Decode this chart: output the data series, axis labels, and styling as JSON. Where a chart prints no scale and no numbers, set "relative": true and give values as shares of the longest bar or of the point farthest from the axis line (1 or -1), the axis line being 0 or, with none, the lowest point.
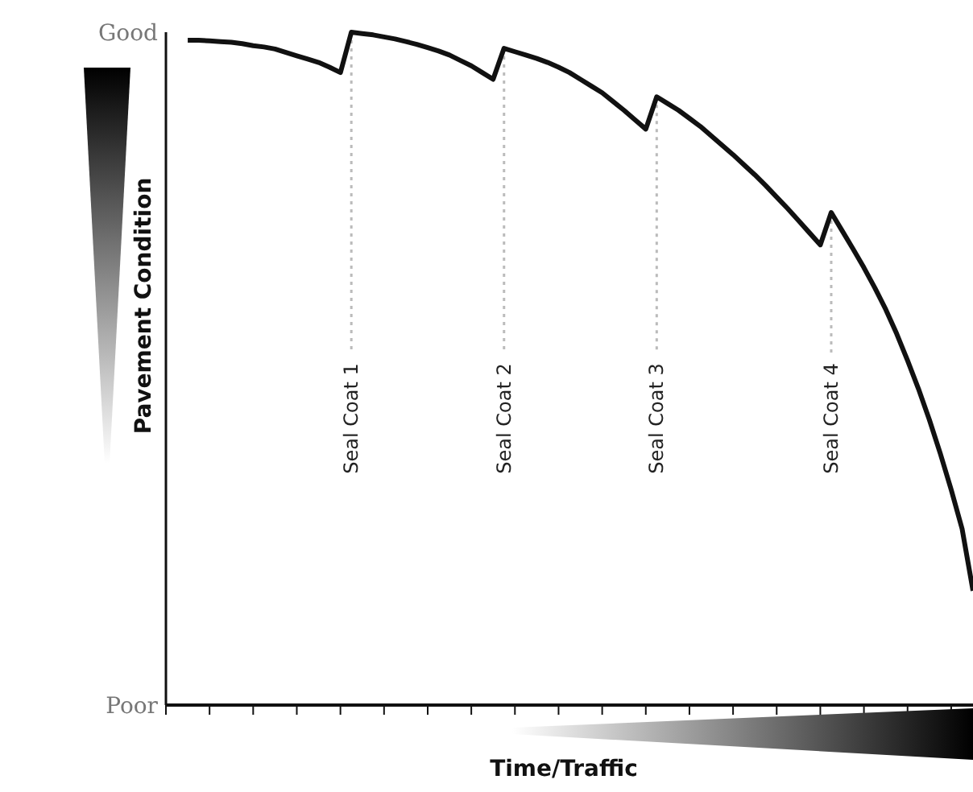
{
  "chart_data": {
    "type": "line",
    "xlabel": "Time/Traffic",
    "ylabel": "Pavement Condition",
    "relative": true,
    "categories": [
      null,
      null,
      null,
      null,
      null,
      null,
      null,
      null,
      null,
      null,
      null,
      null,
      null,
      null,
      null,
      null,
      null,
      null,
      null,
      null,
      null,
      null,
      null,
      null,
      null,
      null,
      null,
      null,
      null,
      null,
      null,
      null,
      null,
      null,
      null,
      null,
      null,
      null,
      null,
      null,
      null,
      null,
      null,
      null,
      null,
      null,
      null,
      null,
      null,
      null,
      null,
      null,
      null,
      null,
      null,
      null,
      null,
      null,
      null,
      null,
      null,
      null,
      null,
      null,
      null,
      null,
      null,
      null,
      null,
      null,
      null,
      null,
      null,
      null,
      null
    ],
    "series": [
      {
        "color": "#111111",
        "values": [
          null,
          null,
          0.988,
          0.988,
          0.987,
          0.986,
          0.985,
          0.983,
          0.98,
          0.978,
          0.975,
          0.97,
          0.965,
          0.96,
          0.955,
          0.948,
          0.94,
          1.0,
          0.998,
          0.996,
          0.993,
          0.99,
          0.986,
          0.982,
          0.977,
          0.972,
          0.966,
          0.958,
          0.95,
          0.94,
          0.93,
          0.976,
          0.971,
          0.966,
          0.961,
          0.955,
          0.948,
          0.94,
          0.93,
          0.92,
          0.91,
          0.897,
          0.884,
          0.87,
          0.856,
          0.904,
          0.894,
          0.884,
          0.872,
          0.86,
          0.846,
          0.832,
          0.818,
          0.803,
          0.788,
          0.772,
          0.755,
          0.738,
          0.72,
          0.702,
          0.684,
          0.732,
          0.705,
          0.678,
          0.65,
          0.62,
          0.588,
          0.552,
          0.512,
          0.47,
          0.424,
          0.374,
          0.32,
          0.262,
          0.17
        ]
      }
    ],
    "annotations": [
      "Good",
      "Poor",
      "Seal Coat 1",
      "Seal Coat 2",
      "Seal Coat 3",
      "Seal Coat 4"
    ],
    "marker": "none",
    "line_style": "solid",
    "grid": false,
    "legend": false
  }
}
